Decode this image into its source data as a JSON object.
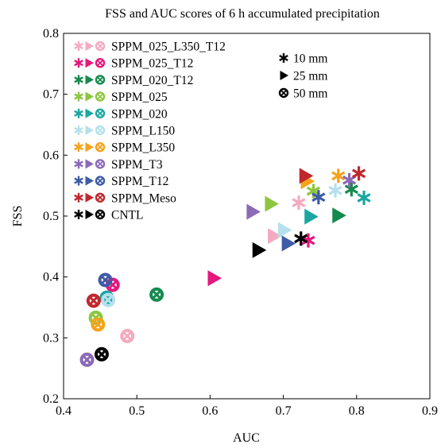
{
  "chart_data": {
    "type": "scatter",
    "title": "FSS and AUC scores of 6 h accumulated precipitation",
    "xlabel": "AUC",
    "ylabel": "FSS",
    "xlim": [
      0.4,
      0.9
    ],
    "ylim": [
      0.2,
      0.8
    ],
    "xticks": [
      "0.4",
      "0.5",
      "0.6",
      "0.7",
      "0.8",
      "0.9"
    ],
    "yticks": [
      "0.2",
      "0.3",
      "0.4",
      "0.5",
      "0.6",
      "0.7",
      "0.8"
    ],
    "grid": false,
    "legend_position": "top-left",
    "marker_legend": [
      {
        "marker": "star",
        "label": "10 mm"
      },
      {
        "marker": "triangle",
        "label": "25 mm"
      },
      {
        "marker": "circle-x",
        "label": "50 mm"
      }
    ],
    "series": [
      {
        "name": "SPPM_025_L350_T12",
        "color": "#f4aac0",
        "points": {
          "10mm": [
            0.721,
            0.522
          ],
          "25mm": [
            0.687,
            0.467
          ],
          "50mm": [
            0.487,
            0.303
          ]
        }
      },
      {
        "name": "SPPM_025_T12",
        "color": "#e6177d",
        "points": {
          "10mm": [
            0.734,
            0.46
          ],
          "25mm": [
            0.605,
            0.398
          ],
          "50mm": [
            0.467,
            0.387
          ]
        }
      },
      {
        "name": "SPPM_020_T12",
        "color": "#148a4e",
        "points": {
          "10mm": [
            0.793,
            0.544
          ],
          "25mm": [
            0.775,
            0.501
          ],
          "50mm": [
            0.527,
            0.371
          ]
        }
      },
      {
        "name": "SPPM_025",
        "color": "#8cc63f",
        "points": {
          "10mm": [
            0.741,
            0.541
          ],
          "25mm": [
            0.683,
            0.52
          ],
          "50mm": [
            0.444,
            0.333
          ]
        }
      },
      {
        "name": "SPPM_020",
        "color": "#1aa7a1",
        "points": {
          "10mm": [
            0.81,
            0.53
          ],
          "25mm": [
            0.737,
            0.499
          ],
          "50mm": [
            0.459,
            0.366
          ]
        }
      },
      {
        "name": "SPPM_L150",
        "color": "#b5e0ec",
        "points": {
          "10mm": [
            0.771,
            0.542
          ],
          "25mm": [
            0.701,
            0.477
          ],
          "50mm": [
            0.461,
            0.362
          ]
        }
      },
      {
        "name": "SPPM_L350",
        "color": "#f6a31b",
        "points": {
          "10mm": [
            0.775,
            0.566
          ],
          "25mm": [
            0.732,
            0.557
          ],
          "50mm": [
            0.447,
            0.322
          ]
        }
      },
      {
        "name": "SPPM_T3",
        "color": "#8c6ab7",
        "points": {
          "10mm": [
            0.79,
            0.559
          ],
          "25mm": [
            0.658,
            0.507
          ],
          "50mm": [
            0.432,
            0.264
          ]
        }
      },
      {
        "name": "SPPM_T12",
        "color": "#3e5ba7",
        "points": {
          "10mm": [
            0.748,
            0.531
          ],
          "25mm": [
            0.706,
            0.455
          ],
          "50mm": [
            0.457,
            0.395
          ]
        }
      },
      {
        "name": "SPPM_Meso",
        "color": "#c1272d",
        "points": {
          "10mm": [
            0.803,
            0.57
          ],
          "25mm": [
            0.73,
            0.566
          ],
          "50mm": [
            0.441,
            0.361
          ]
        }
      },
      {
        "name": "CNTL",
        "color": "#000000",
        "points": {
          "10mm": [
            0.724,
            0.463
          ],
          "25mm": [
            0.666,
            0.444
          ],
          "50mm": [
            0.452,
            0.273
          ]
        }
      }
    ]
  }
}
